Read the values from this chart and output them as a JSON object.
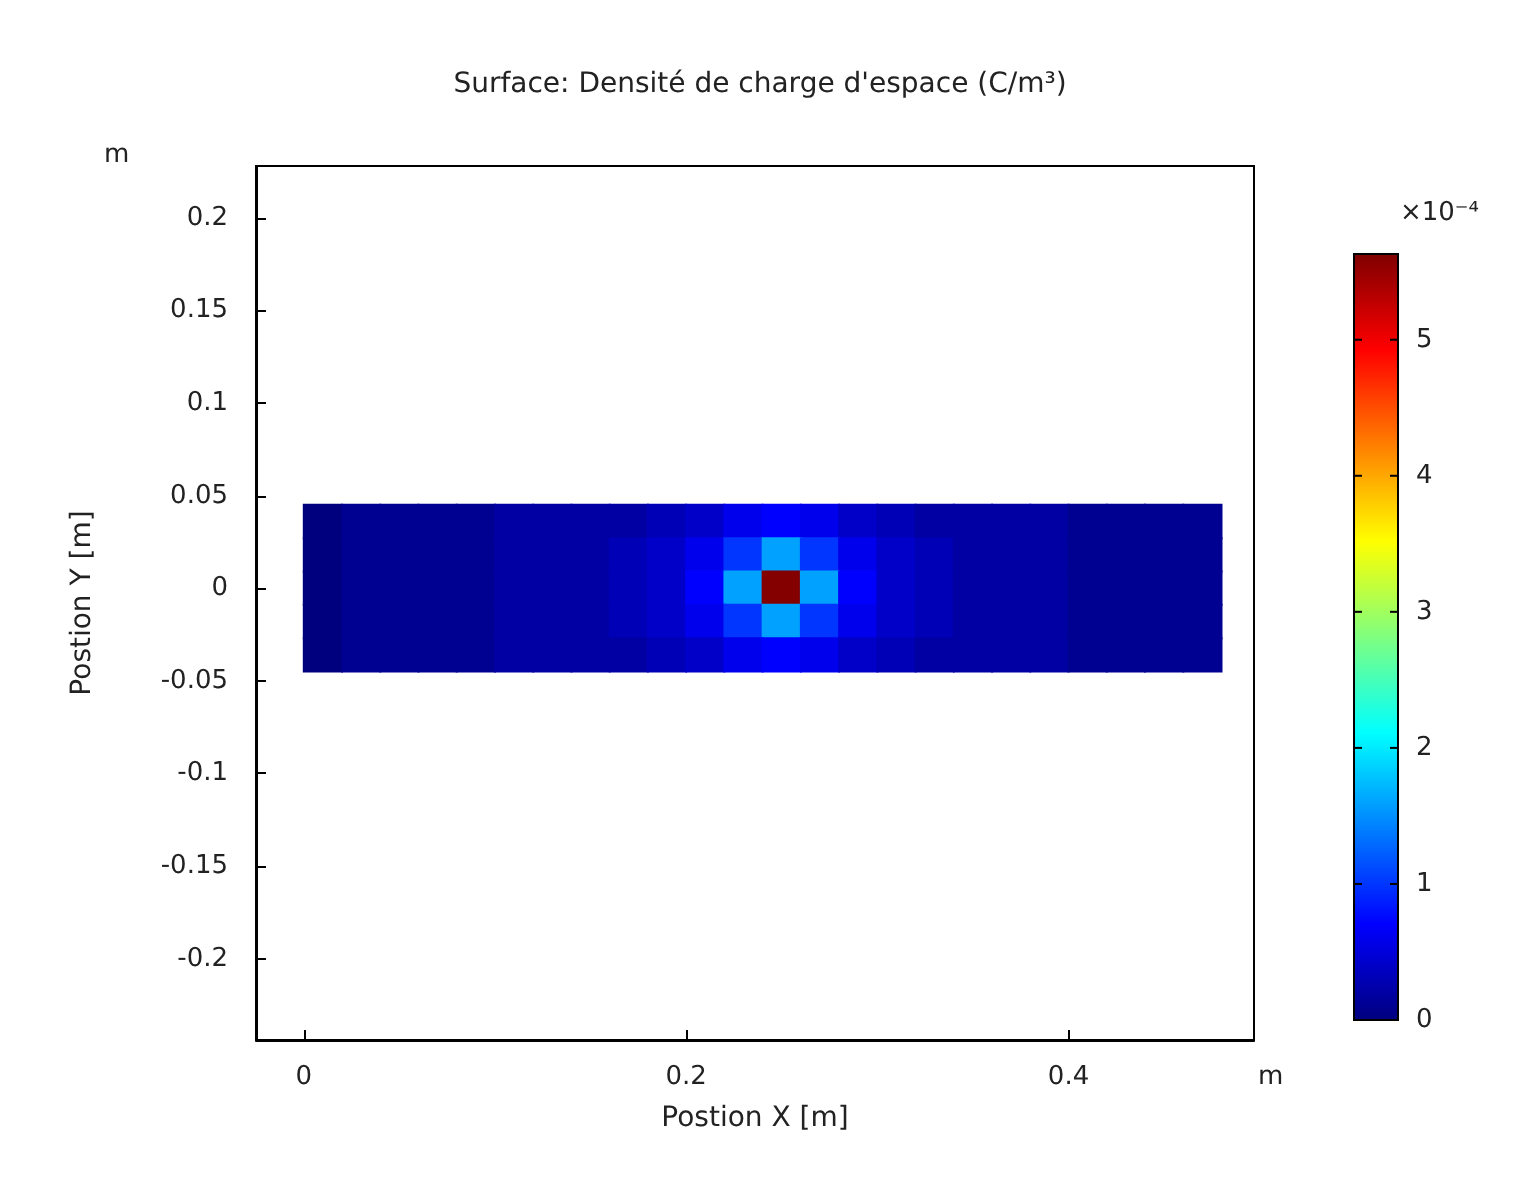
{
  "chart_data": {
    "type": "scatter",
    "title": "Surface: Densité de charge d'espace (C/m³)",
    "xlabel": "Postion X [m]",
    "ylabel": "Postion Y [m]",
    "clabel": "×10⁻⁴",
    "annotations": [
      "m",
      "m"
    ],
    "marker": "square",
    "xlim": [
      -0.025,
      0.497
    ],
    "xticks": [
      0,
      0.2,
      0.4
    ],
    "ylim": [
      -0.244,
      0.228
    ],
    "yticks": [
      -0.2,
      -0.15,
      -0.1,
      -0.05,
      0,
      0.05,
      0.1,
      0.15,
      0.2
    ],
    "clim": [
      0,
      5.63
    ],
    "cticks": [
      0,
      1,
      2,
      3,
      4,
      5
    ],
    "series": [
      {
        "x": [
          0.01,
          0.03,
          0.05,
          0.07,
          0.09,
          0.11,
          0.13,
          0.15,
          0.17,
          0.19,
          0.21,
          0.23,
          0.25,
          0.27,
          0.29,
          0.31,
          0.33,
          0.35,
          0.37,
          0.39,
          0.41,
          0.43,
          0.45,
          0.47
        ],
        "values": [
          0.036,
          0.036,
          0.036,
          0.036,
          0.036,
          0.036,
          0.036,
          0.036,
          0.036,
          0.036,
          0.036,
          0.036,
          0.036,
          0.036,
          0.036,
          0.036,
          0.036,
          0.036,
          0.036,
          0.036,
          0.036,
          0.036,
          0.036,
          0.036
        ],
        "colors": [
          "#00007f",
          "#000091",
          "#000091",
          "#000091",
          "#000091",
          "#0000a3",
          "#0000a3",
          "#0000a3",
          "#0000a3",
          "#0000b6",
          "#0000c8",
          "#0000ec",
          "#0000fe",
          "#0000ec",
          "#0000c8",
          "#0000b6",
          "#0000a3",
          "#0000a3",
          "#0000a3",
          "#0000a3",
          "#000091",
          "#000091",
          "#000091",
          "#000091"
        ]
      },
      {
        "x": [
          0.01,
          0.03,
          0.05,
          0.07,
          0.09,
          0.11,
          0.13,
          0.15,
          0.17,
          0.19,
          0.21,
          0.23,
          0.25,
          0.27,
          0.29,
          0.31,
          0.33,
          0.35,
          0.37,
          0.39,
          0.41,
          0.43,
          0.45,
          0.47
        ],
        "values": [
          0.018,
          0.018,
          0.018,
          0.018,
          0.018,
          0.018,
          0.018,
          0.018,
          0.018,
          0.018,
          0.018,
          0.018,
          0.018,
          0.018,
          0.018,
          0.018,
          0.018,
          0.018,
          0.018,
          0.018,
          0.018,
          0.018,
          0.018,
          0.018
        ],
        "colors": [
          "#00007f",
          "#000091",
          "#000091",
          "#000091",
          "#000091",
          "#0000a3",
          "#0000a3",
          "#0000a3",
          "#0000b6",
          "#0000c8",
          "#0000ec",
          "#0036ff",
          "#00a1ff",
          "#0036ff",
          "#0000ec",
          "#0000c8",
          "#0000b6",
          "#0000a3",
          "#0000a3",
          "#0000a3",
          "#000091",
          "#000091",
          "#000091",
          "#000091"
        ]
      },
      {
        "x": [
          0.01,
          0.03,
          0.05,
          0.07,
          0.09,
          0.11,
          0.13,
          0.15,
          0.17,
          0.19,
          0.21,
          0.23,
          0.25,
          0.27,
          0.29,
          0.31,
          0.33,
          0.35,
          0.37,
          0.39,
          0.41,
          0.43,
          0.45,
          0.47
        ],
        "values": [
          0,
          0,
          0,
          0,
          0,
          0,
          0,
          0,
          0,
          0,
          0,
          0,
          0,
          0,
          0,
          0,
          0,
          0,
          0,
          0,
          0,
          0,
          0,
          0
        ],
        "colors": [
          "#00007f",
          "#000091",
          "#000091",
          "#000091",
          "#000091",
          "#0000a3",
          "#0000a3",
          "#0000a3",
          "#0000b6",
          "#0000c8",
          "#0000fe",
          "#00a1ff",
          "#840000",
          "#00a1ff",
          "#0000fe",
          "#0000c8",
          "#0000b6",
          "#0000a3",
          "#0000a3",
          "#0000a3",
          "#000091",
          "#000091",
          "#000091",
          "#000091"
        ]
      },
      {
        "x": [
          0.01,
          0.03,
          0.05,
          0.07,
          0.09,
          0.11,
          0.13,
          0.15,
          0.17,
          0.19,
          0.21,
          0.23,
          0.25,
          0.27,
          0.29,
          0.31,
          0.33,
          0.35,
          0.37,
          0.39,
          0.41,
          0.43,
          0.45,
          0.47
        ],
        "values": [
          -0.018,
          -0.018,
          -0.018,
          -0.018,
          -0.018,
          -0.018,
          -0.018,
          -0.018,
          -0.018,
          -0.018,
          -0.018,
          -0.018,
          -0.018,
          -0.018,
          -0.018,
          -0.018,
          -0.018,
          -0.018,
          -0.018,
          -0.018,
          -0.018,
          -0.018,
          -0.018,
          -0.018
        ],
        "colors": [
          "#00007f",
          "#000091",
          "#000091",
          "#000091",
          "#000091",
          "#0000a3",
          "#0000a3",
          "#0000a3",
          "#0000b6",
          "#0000c8",
          "#0000ec",
          "#0036ff",
          "#00a1ff",
          "#0036ff",
          "#0000ec",
          "#0000c8",
          "#0000b6",
          "#0000a3",
          "#0000a3",
          "#0000a3",
          "#000091",
          "#000091",
          "#000091",
          "#000091"
        ]
      },
      {
        "x": [
          0.01,
          0.03,
          0.05,
          0.07,
          0.09,
          0.11,
          0.13,
          0.15,
          0.17,
          0.19,
          0.21,
          0.23,
          0.25,
          0.27,
          0.29,
          0.31,
          0.33,
          0.35,
          0.37,
          0.39,
          0.41,
          0.43,
          0.45,
          0.47
        ],
        "values": [
          -0.036,
          -0.036,
          -0.036,
          -0.036,
          -0.036,
          -0.036,
          -0.036,
          -0.036,
          -0.036,
          -0.036,
          -0.036,
          -0.036,
          -0.036,
          -0.036,
          -0.036,
          -0.036,
          -0.036,
          -0.036,
          -0.036,
          -0.036,
          -0.036,
          -0.036,
          -0.036,
          -0.036
        ],
        "colors": [
          "#00007f",
          "#000091",
          "#000091",
          "#000091",
          "#000091",
          "#0000a3",
          "#0000a3",
          "#0000a3",
          "#0000a3",
          "#0000b6",
          "#0000c8",
          "#0000ec",
          "#0000fe",
          "#0000ec",
          "#0000c8",
          "#0000b6",
          "#0000a3",
          "#0000a3",
          "#0000a3",
          "#0000a3",
          "#000091",
          "#000091",
          "#000091",
          "#000091"
        ]
      }
    ]
  }
}
